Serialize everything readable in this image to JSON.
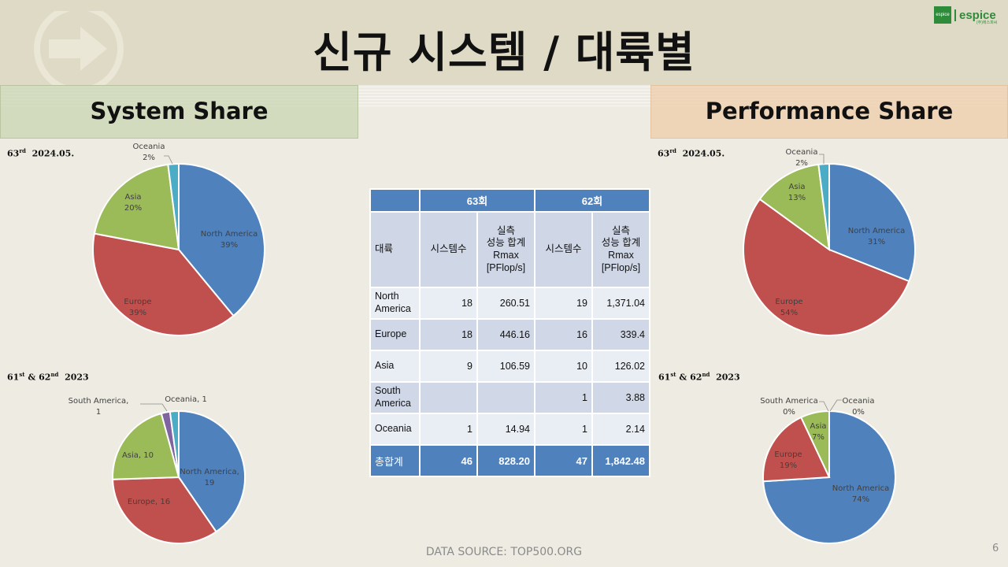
{
  "title": "신규 시스템 / 대륙별",
  "logo": {
    "mark": "espice",
    "text": "espice",
    "sub": "(주)에스피씨"
  },
  "left_header": "System Share",
  "right_header": "Performance Share",
  "period_top": {
    "num": "63",
    "sup": "rd",
    "date": "2024.05."
  },
  "period_bottom": {
    "a": "61",
    "a_sup": "st",
    "amp": "&",
    "b": "62",
    "b_sup": "nd",
    "year": "2023"
  },
  "table": {
    "group_blank": "",
    "group_63": "63회",
    "group_62": "62회",
    "col_region": "대륙",
    "col_systems": "시스템수",
    "col_perf": [
      "실측",
      "성능 합계",
      "Rmax",
      "[PFlop/s]"
    ],
    "rows": [
      {
        "region": [
          "North",
          "America"
        ],
        "s63": "18",
        "p63": "260.51",
        "s62": "19",
        "p62": "1,371.04"
      },
      {
        "region": [
          "Europe"
        ],
        "s63": "18",
        "p63": "446.16",
        "s62": "16",
        "p62": "339.4"
      },
      {
        "region": [
          "Asia"
        ],
        "s63": "9",
        "p63": "106.59",
        "s62": "10",
        "p62": "126.02"
      },
      {
        "region": [
          "South",
          "America"
        ],
        "s63": "",
        "p63": "",
        "s62": "1",
        "p62": "3.88"
      },
      {
        "region": [
          "Oceania"
        ],
        "s63": "1",
        "p63": "14.94",
        "s62": "1",
        "p62": "2.14"
      }
    ],
    "total": {
      "label": "총합계",
      "s63": "46",
      "p63": "828.20",
      "s62": "47",
      "p62": "1,842.48"
    }
  },
  "source": "DATA SOURCE: TOP500.ORG",
  "page_number": "6",
  "chart_data": [
    {
      "type": "pie",
      "panel": "System Share",
      "period": "63rd 2024.05.",
      "colors": [
        "#4f81bd",
        "#c0504d",
        "#9bbb59",
        "#4bacc6"
      ],
      "categories": [
        "North America",
        "Europe",
        "Asia",
        "Oceania"
      ],
      "values": [
        39,
        39,
        20,
        2
      ],
      "labels": [
        [
          "North America",
          "39%"
        ],
        [
          "Europe",
          "39%"
        ],
        [
          "Asia",
          "20%"
        ],
        [
          "Oceania",
          "2%"
        ]
      ]
    },
    {
      "type": "pie",
      "panel": "System Share",
      "period": "61st & 62nd 2023",
      "colors": [
        "#4f81bd",
        "#c0504d",
        "#9bbb59",
        "#8064a2",
        "#4bacc6"
      ],
      "categories": [
        "North America",
        "Europe",
        "Asia",
        "South America",
        "Oceania"
      ],
      "values": [
        19,
        16,
        10,
        1,
        1
      ],
      "labels": [
        [
          "North America,",
          "19"
        ],
        [
          "Europe, 16"
        ],
        [
          "Asia, 10"
        ],
        [
          "South America,",
          "1"
        ],
        [
          "Oceania, 1"
        ]
      ]
    },
    {
      "type": "pie",
      "panel": "Performance Share",
      "period": "63rd 2024.05.",
      "colors": [
        "#4f81bd",
        "#c0504d",
        "#9bbb59",
        "#4bacc6"
      ],
      "categories": [
        "North America",
        "Europe",
        "Asia",
        "Oceania"
      ],
      "values": [
        31,
        54,
        13,
        2
      ],
      "labels": [
        [
          "North America",
          "31%"
        ],
        [
          "Europe",
          "54%"
        ],
        [
          "Asia",
          "13%"
        ],
        [
          "Oceania",
          "2%"
        ]
      ]
    },
    {
      "type": "pie",
      "panel": "Performance Share",
      "period": "61st & 62nd 2023",
      "colors": [
        "#4f81bd",
        "#c0504d",
        "#9bbb59",
        "#8064a2",
        "#4bacc6"
      ],
      "categories": [
        "North America",
        "Europe",
        "Asia",
        "South America",
        "Oceania"
      ],
      "values": [
        74,
        19,
        7,
        0,
        0
      ],
      "labels": [
        [
          "North America",
          "74%"
        ],
        [
          "Europe",
          "19%"
        ],
        [
          "Asia",
          "7%"
        ],
        [
          "South America",
          "0%"
        ],
        [
          "Oceania",
          "0%"
        ]
      ]
    }
  ]
}
